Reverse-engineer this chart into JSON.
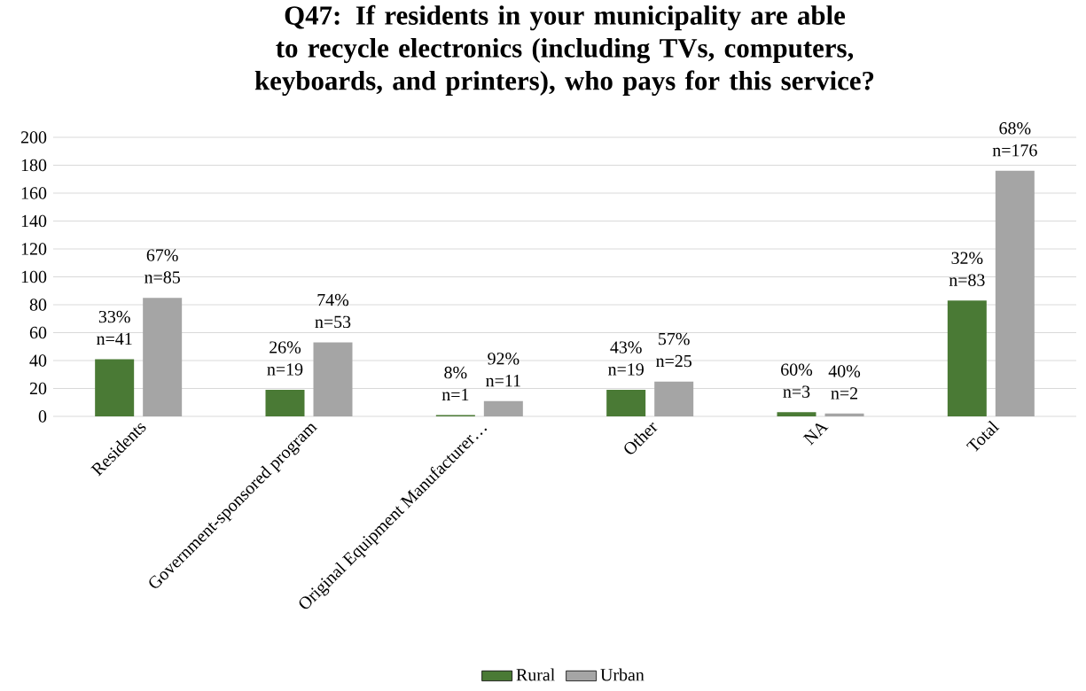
{
  "chart_data": {
    "type": "bar",
    "title": "Q47: If residents in your municipality are able to recycle electronics (including TVs, computers, keyboards, and printers), who pays for this service?",
    "categories": [
      "Residents",
      "Government-sponsored program",
      "Original Equipment Manufacturer…",
      "Other",
      "NA",
      "Total"
    ],
    "series": [
      {
        "name": "Rural",
        "color": "#4a7a35",
        "values": [
          41,
          19,
          1,
          19,
          3,
          83
        ],
        "value_labels": [
          "33% n=41",
          "26% n=19",
          "8% n=1",
          "43% n=19",
          "60% n=3",
          "32% n=83"
        ]
      },
      {
        "name": "Urban",
        "color": "#a5a5a5",
        "values": [
          85,
          53,
          11,
          25,
          2,
          176
        ],
        "value_labels": [
          "67% n=85",
          "74% n=53",
          "92% n=11",
          "57% n=25",
          "40% n=2",
          "68% n=176"
        ]
      }
    ],
    "ylim": [
      0,
      200
    ],
    "yticks": [
      0,
      20,
      40,
      60,
      80,
      100,
      120,
      140,
      160,
      180,
      200
    ],
    "grid": "y",
    "legend": "bottom"
  }
}
